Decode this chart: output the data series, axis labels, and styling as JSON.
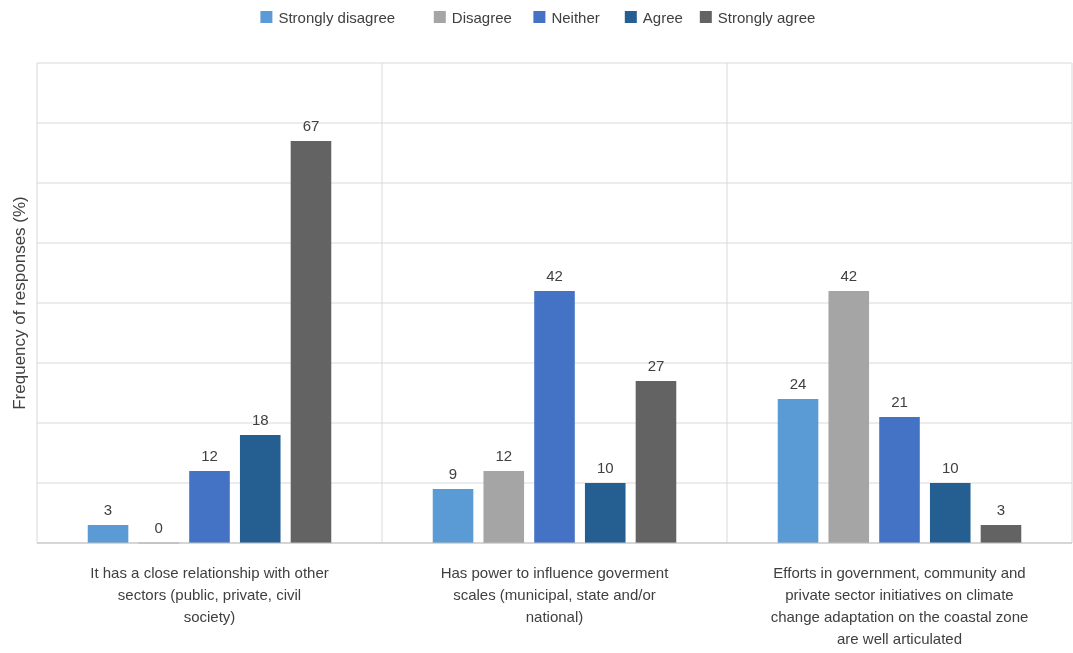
{
  "chart_data": {
    "type": "bar",
    "ylabel": "Frequency of responses (%)",
    "categories": [
      "It has a close relationship with other sectors (public, private, civil society)",
      "Has power to influence goverment scales (municipal, state and/or national)",
      "Efforts in government, community and private sector initiatives on climate change adaptation on the coastal zone are well articulated"
    ],
    "series": [
      {
        "name": "Strongly disagree",
        "color": "#5b9bd5",
        "values": [
          3,
          9,
          24
        ]
      },
      {
        "name": "Disagree",
        "color": "#a5a5a5",
        "values": [
          0,
          12,
          42
        ]
      },
      {
        "name": "Neither",
        "color": "#4472c4",
        "values": [
          12,
          42,
          21
        ]
      },
      {
        "name": "Agree",
        "color": "#255e91",
        "values": [
          18,
          10,
          10
        ]
      },
      {
        "name": "Strongly agree",
        "color": "#636363",
        "values": [
          67,
          27,
          3
        ]
      }
    ],
    "ylim": [
      0,
      80
    ],
    "yticks": [
      {
        "value": 0,
        "label": null
      },
      {
        "value": 10,
        "label": null
      },
      {
        "value": 20,
        "label": null
      },
      {
        "value": 30,
        "label": null
      },
      {
        "value": 40,
        "label": null
      },
      {
        "value": 50,
        "label": null
      },
      {
        "value": 60,
        "label": null
      },
      {
        "value": 70,
        "label": null
      },
      {
        "value": 80,
        "label": null
      }
    ],
    "tick_labels": "x",
    "grid": true,
    "legend": "top",
    "data_labels": true
  }
}
